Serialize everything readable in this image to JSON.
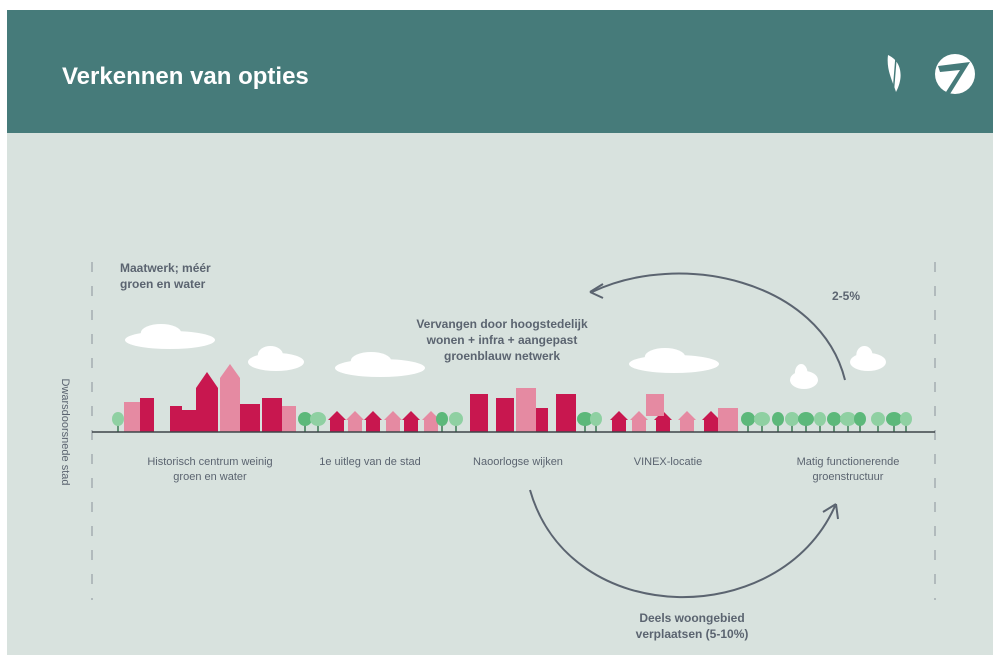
{
  "header": {
    "title": "Verkennen van opties"
  },
  "diagram": {
    "axis_label": "Dwarsdoorsnede stad",
    "annotations": {
      "custom": [
        "Maatwerk; méér",
        "groen en water"
      ],
      "replace": [
        "Vervangen door hoogstedelijk",
        "wonen + infra + aangepast",
        "groenblauw netwerk"
      ],
      "top_percentage": "2-5%",
      "relocate": [
        "Deels woongebied",
        "verplaatsen (5-10%)"
      ]
    },
    "zones": [
      [
        "Historisch centrum weinig",
        "groen en water"
      ],
      [
        "1e uitleg van de stad"
      ],
      [
        "Naoorlogse wijken"
      ],
      [
        "VINEX-locatie"
      ],
      [
        "Matig functionerende",
        "groenstructuur"
      ]
    ]
  }
}
